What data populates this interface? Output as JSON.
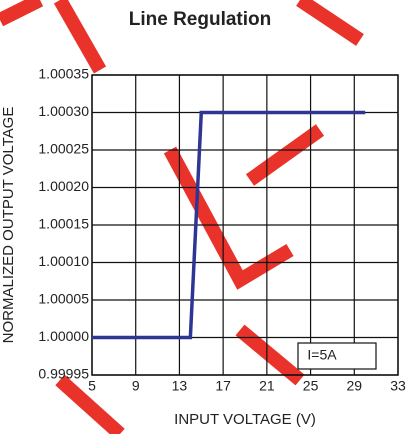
{
  "chart_data": {
    "type": "line",
    "title": "Line Regulation",
    "xlabel": "INPUT VOLTAGE (V)",
    "ylabel": "NORMALIZED OUTPUT VOLTAGE",
    "annotation": "I=5A",
    "x": [
      5,
      14,
      15,
      30
    ],
    "values": [
      1,
      1,
      1.0003,
      1.0003
    ],
    "color": "#2e3592",
    "xlim": [
      5,
      33
    ],
    "xticks": [
      5,
      9,
      13,
      17,
      21,
      25,
      29,
      33
    ],
    "ylim": [
      0.99995,
      1.00035
    ],
    "yticks": [
      0.99995,
      {
        "value": 1,
        "label": "1.00000"
      },
      1.00005,
      {
        "value": 1.0001,
        "label": "1.00010"
      },
      1.00015,
      {
        "value": 1.0002,
        "label": "1.00020"
      },
      1.00025,
      {
        "value": 1.0003,
        "label": "1.00030"
      },
      1.00035
    ],
    "grid": true
  }
}
